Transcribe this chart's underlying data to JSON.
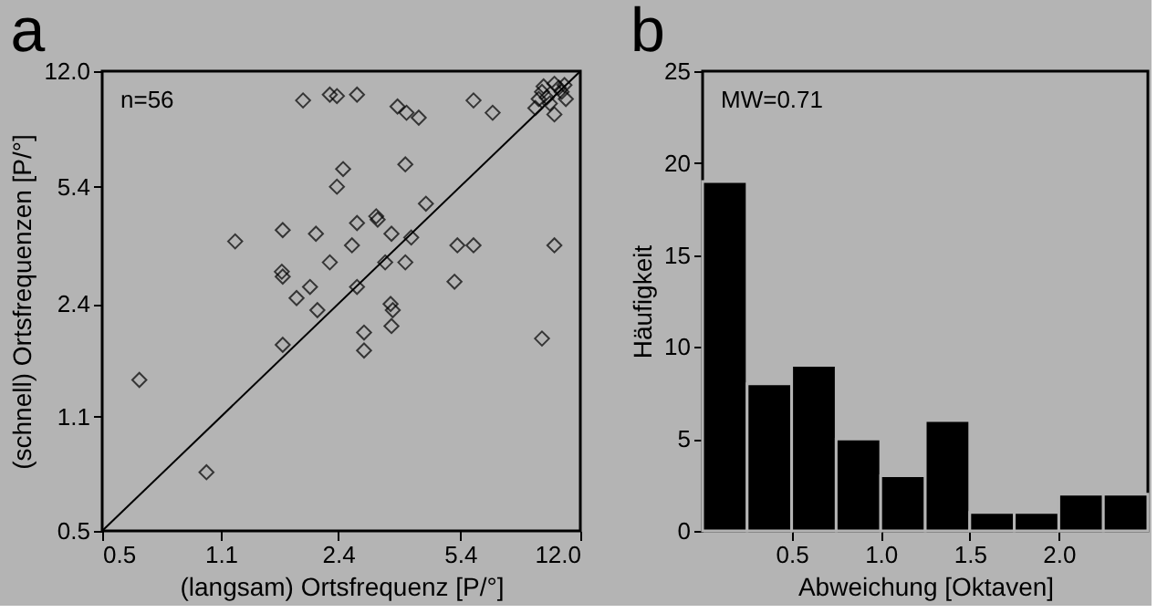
{
  "chart_data": [
    {
      "type": "scatter",
      "title": "a",
      "xlabel": "(langsam) Ortsfrequenz [P/°]",
      "ylabel": "(schnell) Ortsfrequenzen [P/°]",
      "annotations": [
        "n=56"
      ],
      "log": "xy",
      "xlim": [
        0.5,
        12
      ],
      "ylim": [
        0.5,
        12
      ],
      "xticks": [
        0.5,
        1.1,
        2.4,
        5.4,
        {
          "value": 12,
          "label": "12.0"
        }
      ],
      "yticks": [
        0.5,
        1.1,
        2.4,
        5.4,
        {
          "value": 12,
          "label": "12.0"
        }
      ],
      "series": [
        {
          "type": "scatter",
          "color": "#000000",
          "marker": "diamond",
          "x": [
            1.9,
            2.27,
            2.38,
            2.72,
            3.56,
            3.78,
            4.1,
            5.9,
            6.7,
            9.3,
            9.6,
            10.1,
            10.6,
            10.9,
            8.9,
            10.1,
            9.8,
            9.4,
            10.4,
            9.1,
            10.8,
            2.48,
            2.38,
            3.75,
            4.3,
            2.72,
            3.09,
            3.12,
            3.42,
            3.9,
            1.21,
            1.66,
            2.07,
            2.63,
            2.27,
            3.28,
            3.75,
            5.3,
            5.9,
            10.1,
            1.65,
            1.66,
            1.99,
            1.82,
            2.72,
            5.2,
            2.09,
            3.4,
            3.45,
            2.85,
            2.85,
            3.42,
            1.66,
            9.3,
            0.64,
            1.0
          ],
          "values": [
            9.8,
            10.2,
            10.1,
            10.2,
            9.4,
            9.0,
            8.7,
            9.8,
            9.0,
            10.4,
            10.0,
            11.0,
            10.4,
            9.9,
            9.3,
            8.9,
            9.6,
            10.8,
            10.7,
            9.9,
            10.9,
            6.1,
            5.4,
            6.3,
            4.8,
            4.2,
            4.4,
            4.3,
            3.9,
            3.8,
            3.7,
            4.0,
            3.9,
            3.6,
            3.2,
            3.2,
            3.2,
            3.6,
            3.6,
            3.6,
            3.0,
            2.9,
            2.7,
            2.5,
            2.7,
            2.8,
            2.3,
            2.4,
            2.3,
            1.97,
            1.74,
            2.06,
            1.81,
            1.89,
            1.42,
            0.75
          ]
        },
        {
          "type": "line",
          "color": "#000000",
          "marker": "none",
          "x": [
            0.5,
            12
          ],
          "values": [
            0.5,
            12
          ]
        }
      ]
    },
    {
      "type": "histogram",
      "title": "b",
      "xlabel": "Abweichung [Oktaven]",
      "ylabel": "Häufigkeit",
      "annotations": [
        "MW=0.71"
      ],
      "color": "#000000",
      "bins": [
        0,
        0.25,
        0.5,
        0.75,
        1.0,
        1.25,
        1.5,
        1.75,
        2.0,
        2.25,
        2.5
      ],
      "values": [
        19,
        8,
        9,
        5,
        3,
        6,
        1,
        1,
        2,
        2
      ],
      "xlim": [
        0,
        2.5
      ],
      "ylim": [
        0,
        25
      ],
      "xticks": [
        0.5,
        {
          "value": 1,
          "label": "1.0"
        },
        1.5,
        {
          "value": 2,
          "label": "2.0"
        }
      ],
      "yticks": [
        0,
        5,
        10,
        15,
        20,
        25
      ]
    }
  ]
}
